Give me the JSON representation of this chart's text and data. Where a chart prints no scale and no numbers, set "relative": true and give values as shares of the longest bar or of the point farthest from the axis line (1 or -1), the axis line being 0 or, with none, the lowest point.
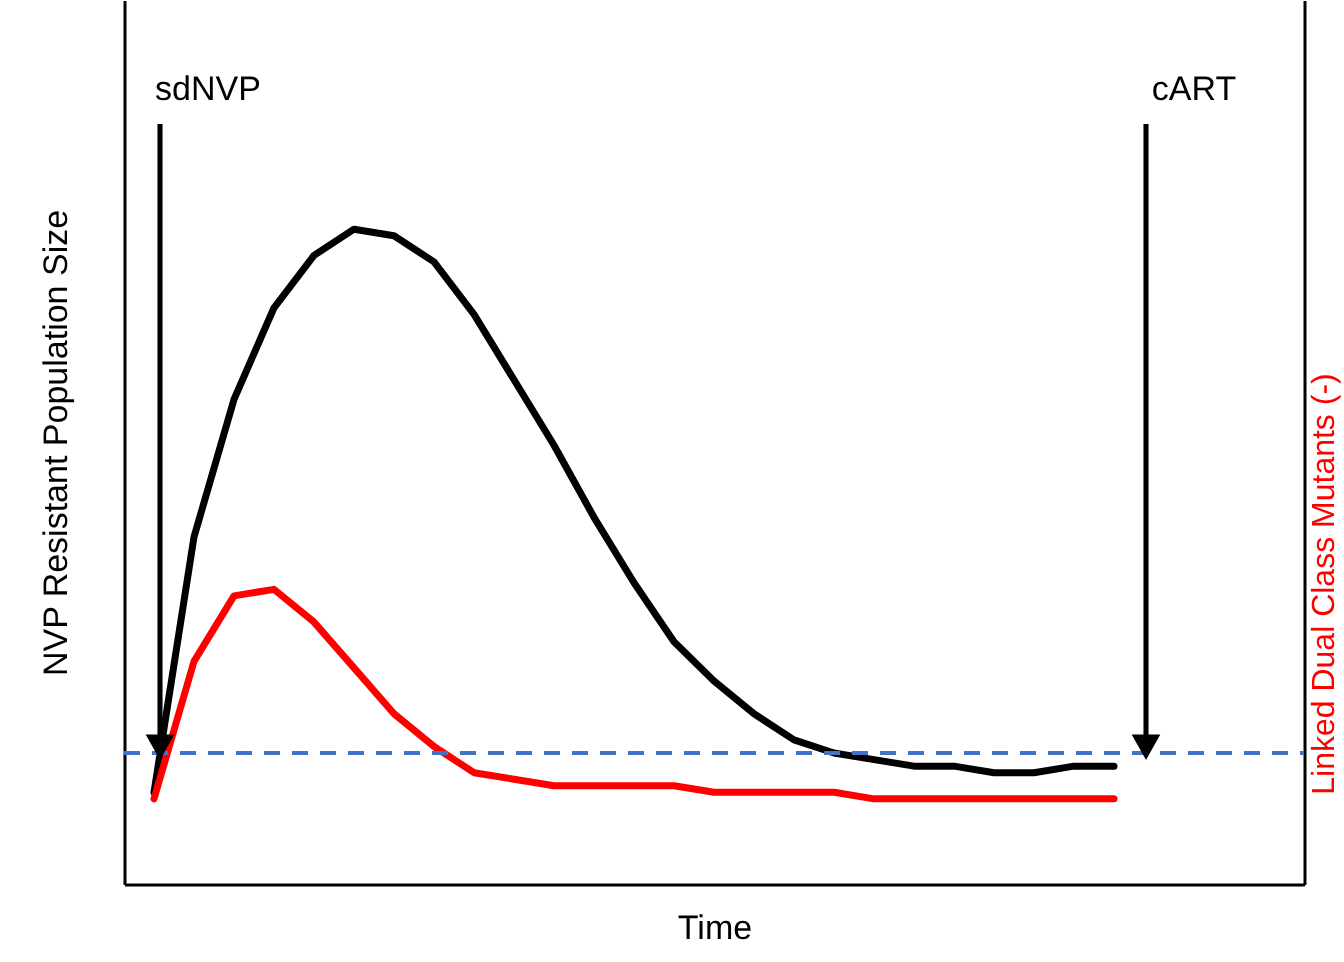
{
  "chart_data": {
    "type": "line",
    "relative": true,
    "xlabel": "Time",
    "ylabel": "NVP Resistant Population Size",
    "categories": [
      null,
      null,
      null,
      null,
      null,
      null,
      null,
      null,
      null,
      null,
      null,
      null,
      null,
      null,
      null,
      null,
      null,
      null,
      null,
      null,
      null,
      null,
      null,
      null,
      null
    ],
    "series": [
      {
        "color": "#000000",
        "values": [
          0.14,
          0.53,
          0.74,
          0.88,
          0.96,
          1.0,
          0.99,
          0.95,
          0.87,
          0.77,
          0.67,
          0.56,
          0.46,
          0.37,
          0.31,
          0.26,
          0.22,
          0.2,
          0.19,
          0.18,
          0.18,
          0.17,
          0.17,
          0.18,
          0.18
        ]
      },
      {
        "color": "#ff0000",
        "values": [
          0.13,
          0.34,
          0.44,
          0.45,
          0.4,
          0.33,
          0.26,
          0.21,
          0.17,
          0.16,
          0.15,
          0.15,
          0.15,
          0.15,
          0.14,
          0.14,
          0.14,
          0.14,
          0.13,
          0.13,
          0.13,
          0.13,
          0.13,
          0.13,
          0.13
        ]
      }
    ],
    "ref_lines": [
      {
        "axis": "y",
        "value": 0.2,
        "color": "#4472c4",
        "line_style": "dashed"
      }
    ],
    "annotations": [
      "sdNVP",
      "cART",
      "Linked Dual Class Mutants (-)"
    ],
    "grid": false,
    "legend": false,
    "line_style": "solid",
    "marker": "none"
  }
}
